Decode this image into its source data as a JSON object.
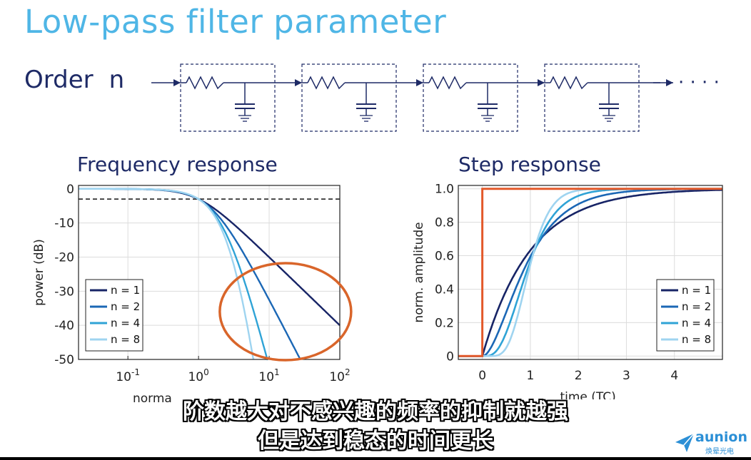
{
  "title": "Low-pass filter parameter",
  "order": {
    "label": "Order",
    "symbol": "n",
    "stages": 4,
    "ellipsis": "· · · ·"
  },
  "subtitles": {
    "line1": "阶数越大对不感兴趣的频率的抑制就越强",
    "line2": "但是达到稳态的时间更长"
  },
  "logo": {
    "brand": "aunion",
    "sub": "焕晕光电"
  },
  "colors": {
    "n1": "#172466",
    "n2": "#1b67b5",
    "n4": "#2fa3d6",
    "n8": "#9fd4f0",
    "step": "#e3592a",
    "highlight": "#d9652a",
    "accent": "#4fb6e6",
    "text": "#1e2a66"
  },
  "chart_data": [
    {
      "type": "line",
      "title": "Frequency response",
      "xlabel": "norma",
      "ylabel": "power (dB)",
      "xscale": "log",
      "xlim": [
        0.02,
        100
      ],
      "ylim": [
        -50,
        1
      ],
      "xticks": [
        {
          "v": 0.1,
          "base": "10",
          "exp": "-1"
        },
        {
          "v": 1,
          "base": "10",
          "exp": "0"
        },
        {
          "v": 10,
          "base": "10",
          "exp": "1"
        },
        {
          "v": 100,
          "base": "10",
          "exp": "2"
        }
      ],
      "yticks": [
        0,
        -10,
        -20,
        -30,
        -40,
        -50
      ],
      "reference_line": {
        "y": -3,
        "style": "dashed"
      },
      "highlight": "ellipse around high-frequency roll-off",
      "grid": true,
      "legend": {
        "position": "bottom-left",
        "entries": [
          "n = 1",
          "n = 2",
          "n = 4",
          "n = 8"
        ]
      },
      "series": [
        {
          "name": "n = 1",
          "order": 1,
          "color": "#172466"
        },
        {
          "name": "n = 2",
          "order": 2,
          "color": "#1b67b5"
        },
        {
          "name": "n = 4",
          "order": 4,
          "color": "#2fa3d6"
        },
        {
          "name": "n = 8",
          "order": 8,
          "color": "#9fd4f0"
        }
      ]
    },
    {
      "type": "line",
      "title": "Step response",
      "xlabel": "time (TC)",
      "ylabel": "norm. amplitude",
      "xlim": [
        -0.5,
        5
      ],
      "ylim": [
        -0.02,
        1.02
      ],
      "xticks": [
        0,
        1,
        2,
        3,
        4
      ],
      "yticks": [
        0,
        0.2,
        0.4,
        0.6,
        0.8,
        1.0
      ],
      "ytick_labels": [
        "0",
        "0.2",
        "0.4",
        "0.6",
        "0.8",
        "1.0"
      ],
      "grid": true,
      "legend": {
        "position": "bottom-right",
        "entries": [
          "n = 1",
          "n = 2",
          "n = 4",
          "n = 8"
        ]
      },
      "series": [
        {
          "name": "n = 1",
          "order": 1,
          "color": "#172466"
        },
        {
          "name": "n = 2",
          "order": 2,
          "color": "#1b67b5"
        },
        {
          "name": "n = 4",
          "order": 4,
          "color": "#2fa3d6"
        },
        {
          "name": "n = 8",
          "order": 8,
          "color": "#9fd4f0"
        }
      ],
      "input_step": {
        "t0": 0,
        "color": "#e3592a"
      }
    }
  ]
}
